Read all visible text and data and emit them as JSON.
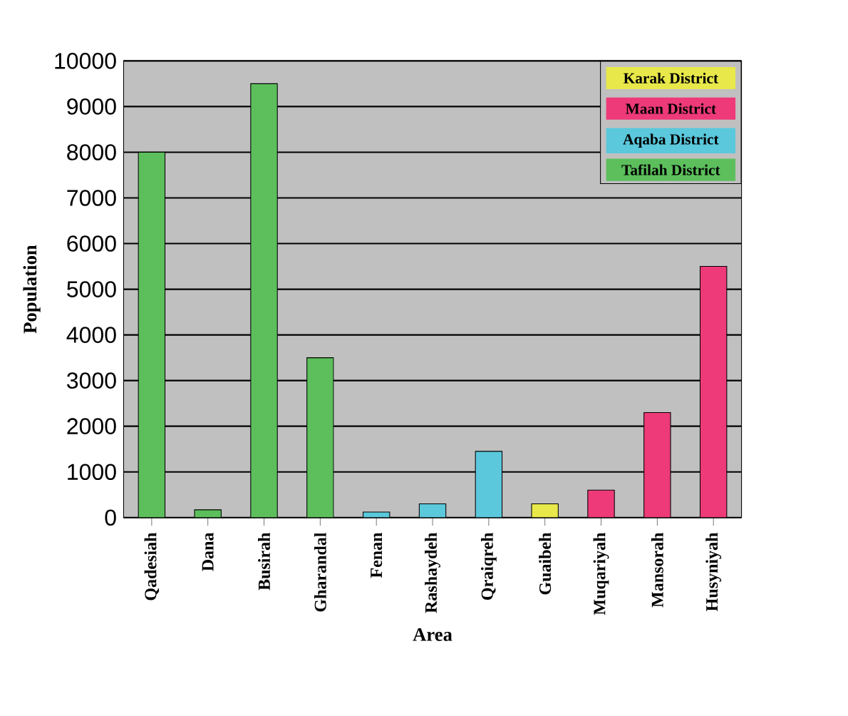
{
  "chart_data": {
    "type": "bar",
    "xlabel": "Area",
    "ylabel": "Population",
    "categories": [
      "Qadesiah",
      "Dana",
      "Busirah",
      "Gharandal",
      "Fenan",
      "Rashaydeh",
      "Qraiqreh",
      "Guaibeh",
      "Muqariyah",
      "Mansorah",
      "Husyniyah"
    ],
    "series": [
      {
        "name": "Karak District",
        "color": "#e8e84a",
        "values": [
          null,
          null,
          null,
          null,
          null,
          null,
          null,
          300,
          null,
          null,
          null
        ]
      },
      {
        "name": "Maan District",
        "color": "#ee3a78",
        "values": [
          null,
          null,
          null,
          null,
          null,
          null,
          null,
          null,
          600,
          2300,
          5500
        ]
      },
      {
        "name": "Aqaba District",
        "color": "#5bc8dc",
        "values": [
          null,
          null,
          null,
          null,
          120,
          300,
          1450,
          null,
          null,
          null,
          null
        ]
      },
      {
        "name": "Tafilah District",
        "color": "#5cbf5c",
        "values": [
          8000,
          170,
          9500,
          3500,
          null,
          null,
          null,
          null,
          null,
          null,
          null
        ]
      }
    ],
    "ylim": [
      0,
      10000
    ],
    "yticks": [
      0,
      1000,
      2000,
      3000,
      4000,
      5000,
      6000,
      7000,
      8000,
      9000,
      10000
    ],
    "grid": "y",
    "legend": "top right"
  }
}
